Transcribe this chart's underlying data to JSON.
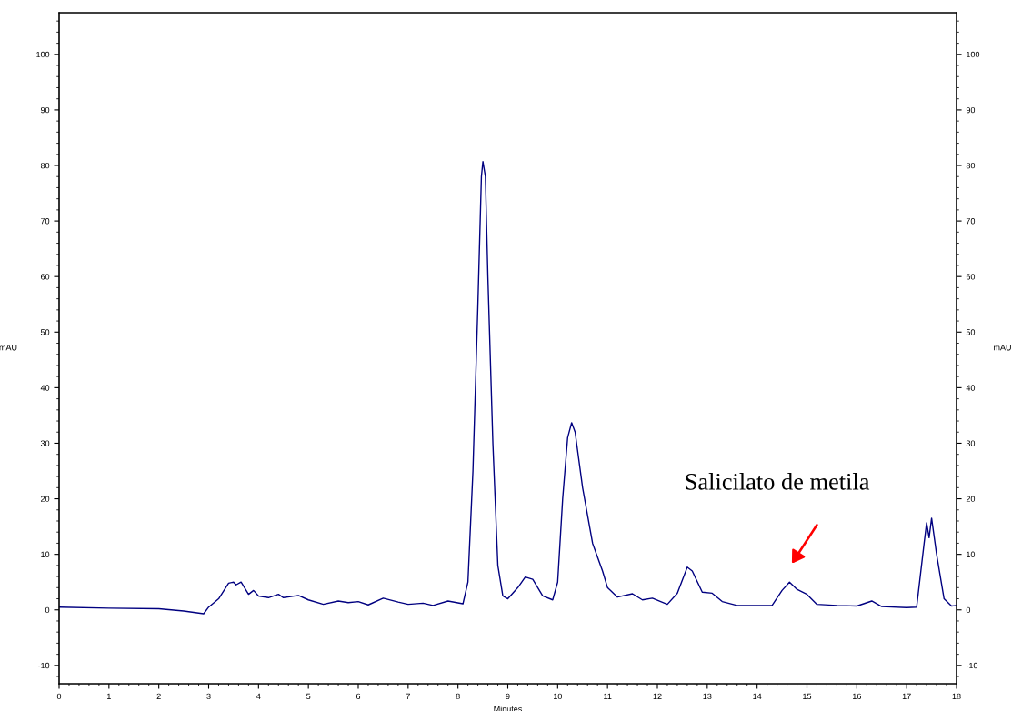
{
  "chart_data": {
    "type": "line",
    "xlabel": "Minutes",
    "ylabel": "mAU",
    "y2label": "mAU",
    "x": [
      0,
      1,
      2,
      2.5,
      2.9,
      3.0,
      3.2,
      3.4,
      3.5,
      3.55,
      3.65,
      3.8,
      3.9,
      4.0,
      4.2,
      4.4,
      4.5,
      4.8,
      5.0,
      5.3,
      5.6,
      5.8,
      6.0,
      6.2,
      6.5,
      6.8,
      7.0,
      7.3,
      7.5,
      7.8,
      8.1,
      8.2,
      8.3,
      8.4,
      8.47,
      8.5,
      8.55,
      8.6,
      8.7,
      8.8,
      8.9,
      9.0,
      9.2,
      9.35,
      9.5,
      9.7,
      9.9,
      10.0,
      10.1,
      10.2,
      10.28,
      10.35,
      10.5,
      10.7,
      10.9,
      11.0,
      11.2,
      11.5,
      11.7,
      11.9,
      12.2,
      12.4,
      12.6,
      12.7,
      12.9,
      13.1,
      13.3,
      13.6,
      14.0,
      14.3,
      14.5,
      14.65,
      14.8,
      15.0,
      15.2,
      15.6,
      16.0,
      16.3,
      16.5,
      17.0,
      17.2,
      17.35,
      17.4,
      17.45,
      17.5,
      17.6,
      17.75,
      17.9,
      18
    ],
    "series": [
      {
        "color": "#000080",
        "values": [
          0.5,
          0.3,
          0.2,
          -0.2,
          -0.7,
          0.5,
          2,
          4.8,
          5.0,
          4.5,
          5.0,
          2.8,
          3.5,
          2.5,
          2.2,
          2.8,
          2.2,
          2.6,
          1.8,
          1.0,
          1.6,
          1.3,
          1.5,
          0.9,
          2.1,
          1.4,
          1.0,
          1.2,
          0.8,
          1.6,
          1.1,
          5,
          25,
          55,
          78,
          80.7,
          78,
          60,
          30,
          8,
          2.5,
          2.0,
          4,
          5.9,
          5.5,
          2.5,
          1.8,
          5,
          20,
          31,
          33.7,
          32,
          22,
          12,
          7,
          4,
          2.3,
          2.9,
          1.8,
          2.1,
          1.0,
          3,
          7.7,
          7,
          3.2,
          3.0,
          1.5,
          0.8,
          0.8,
          0.8,
          3.5,
          5.0,
          3.7,
          2.8,
          1.0,
          0.8,
          0.7,
          1.6,
          0.6,
          0.4,
          0.5,
          12,
          15.7,
          13,
          16.5,
          10,
          2,
          0.7,
          0.8
        ]
      }
    ],
    "xlim": [
      0,
      18
    ],
    "xticks": [
      0,
      1,
      2,
      3,
      4,
      5,
      6,
      7,
      8,
      9,
      10,
      11,
      12,
      13,
      14,
      15,
      16,
      17,
      18
    ],
    "ylim": [
      -13.3,
      107.5
    ],
    "yticks": [
      -10,
      0,
      10,
      20,
      30,
      40,
      50,
      60,
      70,
      80,
      90,
      100
    ],
    "y2lim": [
      -13.3,
      107.5
    ],
    "y2ticks": [
      -10,
      0,
      10,
      20,
      30,
      40,
      50,
      60,
      70,
      80,
      90,
      100
    ],
    "annotations": [
      "Salicilato de metila"
    ],
    "grid": false,
    "legend": false,
    "marker": "none",
    "line_style": "solid"
  }
}
